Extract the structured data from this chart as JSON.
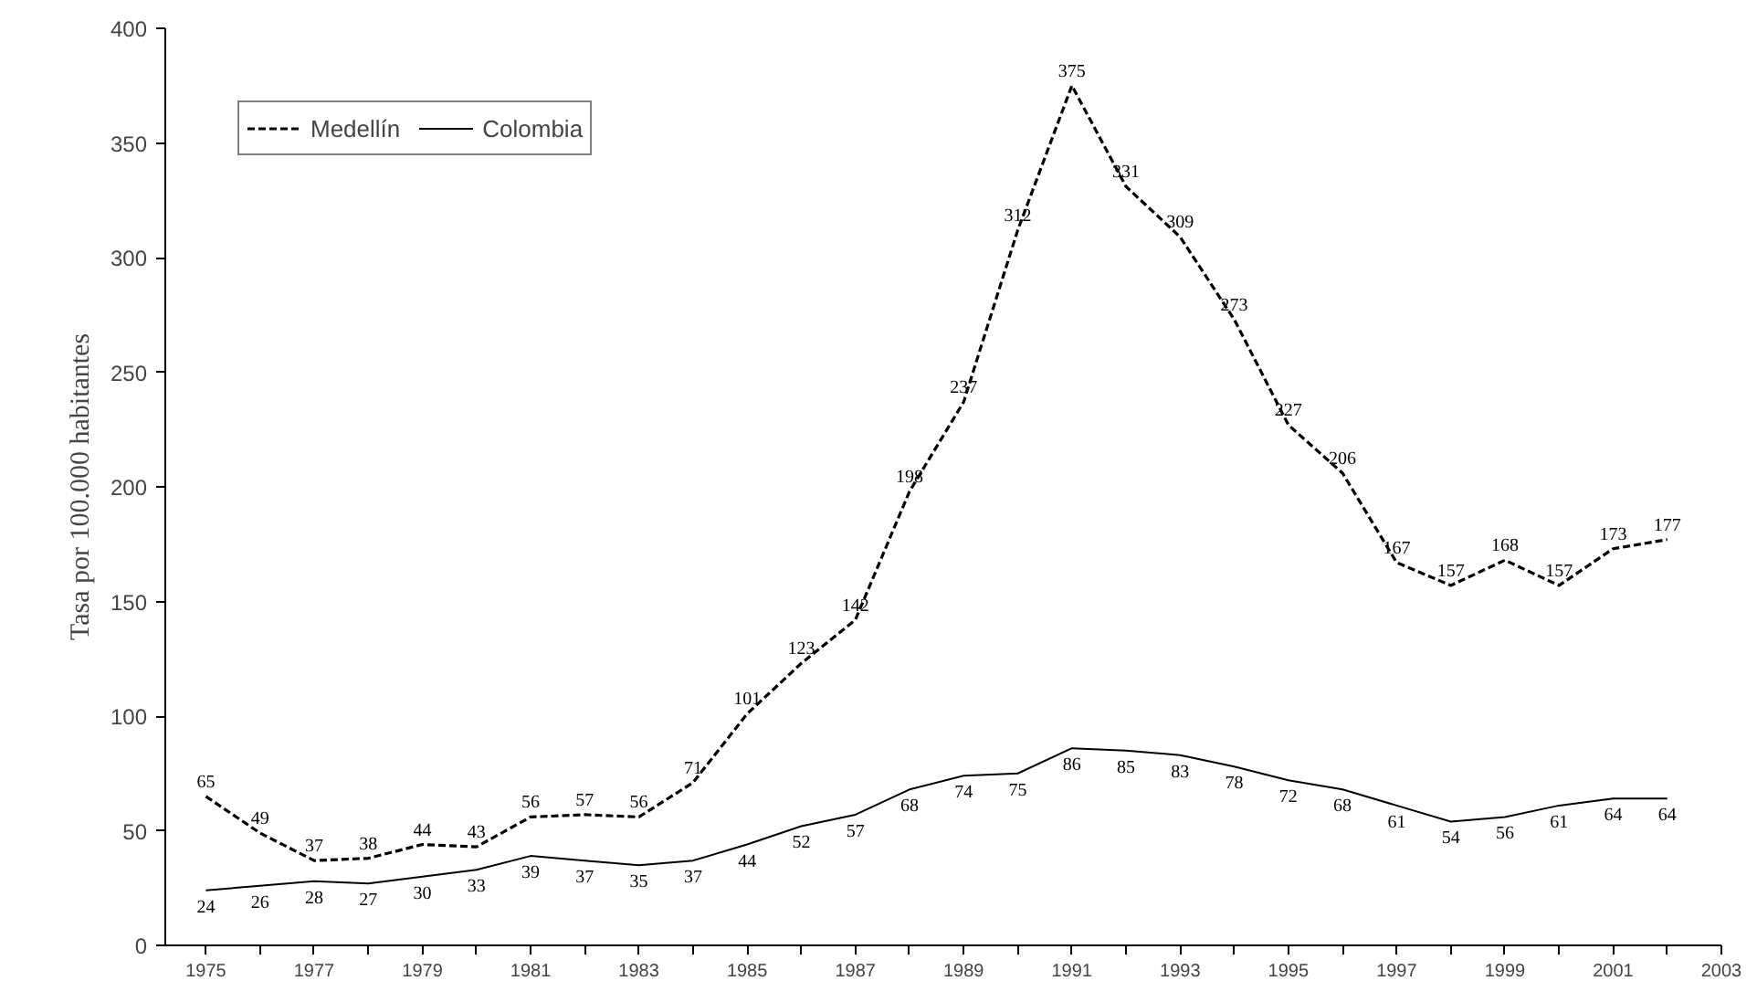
{
  "chart_data": {
    "type": "line",
    "ylabel": "Tasa por 100.000 habitantes",
    "x": [
      1975,
      1976,
      1977,
      1978,
      1979,
      1980,
      1981,
      1982,
      1983,
      1984,
      1985,
      1986,
      1987,
      1988,
      1989,
      1990,
      1991,
      1992,
      1993,
      1994,
      1995,
      1996,
      1997,
      1998,
      1999,
      2000,
      2001,
      2002
    ],
    "series": [
      {
        "name": "Medellín",
        "color": "#000000",
        "line_style": "dashed",
        "values": [
          65,
          49,
          37,
          38,
          44,
          43,
          56,
          57,
          56,
          71,
          101,
          123,
          142,
          198,
          237,
          312,
          375,
          331,
          309,
          273,
          227,
          206,
          167,
          157,
          168,
          157,
          173,
          177
        ]
      },
      {
        "name": "Colombia",
        "color": "#000000",
        "line_style": "solid",
        "values": [
          24,
          26,
          28,
          27,
          30,
          33,
          39,
          37,
          35,
          37,
          44,
          52,
          57,
          68,
          74,
          75,
          86,
          85,
          83,
          78,
          72,
          68,
          61,
          54,
          56,
          61,
          64,
          64
        ]
      }
    ],
    "xlim": [
      1974.25,
      2003
    ],
    "xticks": [
      1975,
      {
        "value": 1976,
        "label": null
      },
      1977,
      {
        "value": 1978,
        "label": null
      },
      1979,
      {
        "value": 1980,
        "label": null
      },
      1981,
      {
        "value": 1982,
        "label": null
      },
      1983,
      {
        "value": 1984,
        "label": null
      },
      1985,
      {
        "value": 1986,
        "label": null
      },
      1987,
      {
        "value": 1988,
        "label": null
      },
      1989,
      {
        "value": 1990,
        "label": null
      },
      1991,
      {
        "value": 1992,
        "label": null
      },
      1993,
      {
        "value": 1994,
        "label": null
      },
      1995,
      {
        "value": 1996,
        "label": null
      },
      1997,
      {
        "value": 1998,
        "label": null
      },
      1999,
      {
        "value": 2000,
        "label": null
      },
      2001,
      {
        "value": 2002,
        "label": null
      },
      2003
    ],
    "ylim": [
      0,
      400
    ],
    "yticks": [
      0,
      50,
      100,
      150,
      200,
      250,
      300,
      350,
      400
    ],
    "grid": false,
    "legend": "top left",
    "data_labels": true,
    "marker": "none"
  }
}
